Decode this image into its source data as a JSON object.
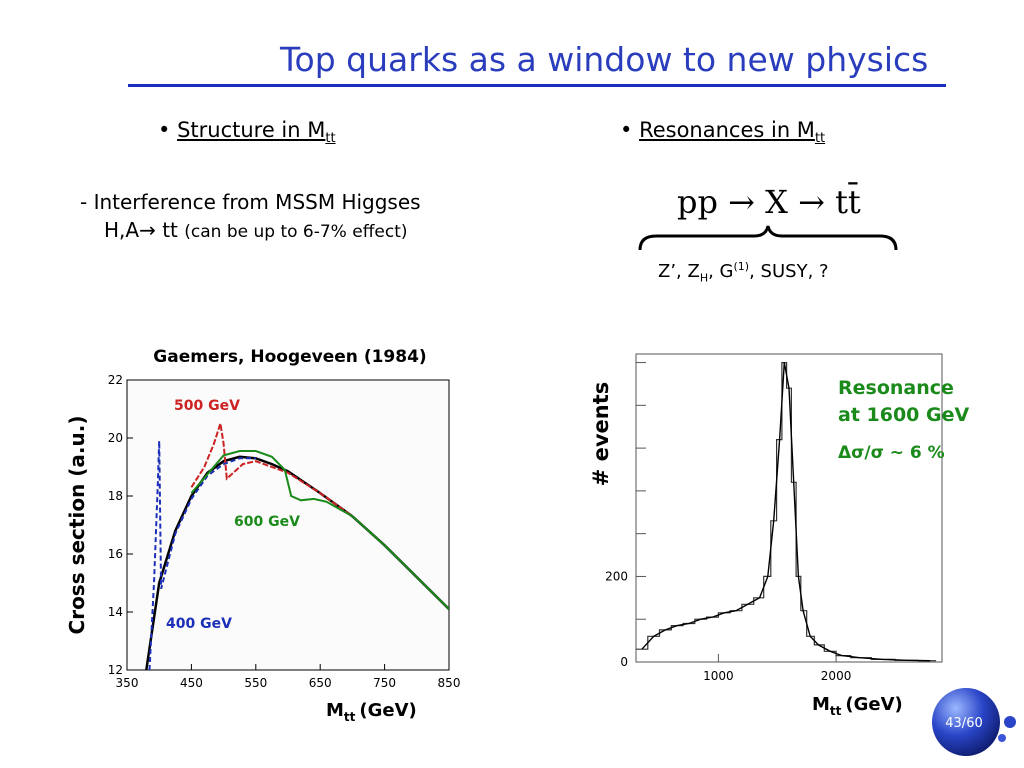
{
  "slide": {
    "title": "Top quarks as a window to new physics",
    "page_number": "43/60",
    "accent_color": "#2a3dbd"
  },
  "left": {
    "bullet_label": "Structure in M",
    "bullet_sub": "tt",
    "interference_line1": "- Interference from MSSM Higgses",
    "interference_line2": "H,A",
    "interference_arrow": "→",
    "interference_tt": "tt",
    "interference_note": "(can be up to 6-7% effect)",
    "plot_title": "Gaemers, Hoogeveen (1984)",
    "ylabel": "Cross section (a.u.)",
    "xlabel_main": "M",
    "xlabel_sub": "tt",
    "xlabel_unit": "(GeV)",
    "labels": {
      "m500": "500 GeV",
      "m600": "600 GeV",
      "m400": "400 GeV"
    }
  },
  "right": {
    "bullet_label": "Resonances in M",
    "bullet_sub": "tt",
    "equation": "pp → X → tt̄",
    "candidates_text": "Z’, Z",
    "candidates_sub": "H",
    "candidates_g": ", G",
    "candidates_sup": "(1)",
    "candidates_rest": ", SUSY, ?",
    "ylabel": "# events",
    "xlabel_main": "M",
    "xlabel_sub": "tt",
    "xlabel_unit": "(GeV)",
    "annotation_line1": "Resonance",
    "annotation_line2": "at 1600 GeV",
    "annotation_line3": "Δσ/σ ~ 6 %"
  },
  "chart_data": [
    {
      "type": "line",
      "title": "Gaemers, Hoogeveen (1984)",
      "xlabel": "Mtt (GeV)",
      "ylabel": "Cross section (a.u.)",
      "xlim": [
        350,
        850
      ],
      "ylim": [
        12,
        22
      ],
      "xticks": [
        350,
        450,
        550,
        650,
        750,
        850
      ],
      "yticks": [
        12,
        14,
        16,
        18,
        20,
        22
      ],
      "series": [
        {
          "name": "",
          "color": "#000000",
          "x": [
            380,
            400,
            425,
            450,
            475,
            500,
            525,
            550,
            575,
            600,
            650,
            700,
            750,
            800,
            850
          ],
          "y": [
            12.0,
            15.0,
            16.8,
            18.0,
            18.8,
            19.2,
            19.35,
            19.3,
            19.1,
            18.85,
            18.1,
            17.3,
            16.3,
            15.2,
            14.1
          ]
        },
        {
          "name": "400 GeV",
          "color": "#1c2fb8",
          "x": [
            385,
            392,
            398,
            400,
            403,
            410,
            425,
            450,
            475,
            500,
            525,
            550
          ],
          "y": [
            12.0,
            15.0,
            18.5,
            19.9,
            14.8,
            15.4,
            16.7,
            17.9,
            18.7,
            19.1,
            19.3,
            19.3
          ]
        },
        {
          "name": "500 GeV",
          "color": "#cc2222",
          "x": [
            450,
            470,
            485,
            495,
            500,
            505,
            515,
            530,
            550,
            600,
            650,
            700
          ],
          "y": [
            18.3,
            19.0,
            19.8,
            20.5,
            19.8,
            18.6,
            18.8,
            19.1,
            19.2,
            18.8,
            18.1,
            17.3
          ]
        },
        {
          "name": "600 GeV",
          "color": "#1a8a1a",
          "x": [
            450,
            500,
            525,
            550,
            575,
            595,
            605,
            620,
            640,
            660,
            700,
            750,
            800,
            850
          ],
          "y": [
            18.1,
            19.4,
            19.55,
            19.55,
            19.35,
            18.9,
            18.0,
            17.85,
            17.9,
            17.8,
            17.3,
            16.3,
            15.2,
            14.1
          ]
        }
      ]
    },
    {
      "type": "line",
      "xlabel": "Mtt (GeV)",
      "ylabel": "# events",
      "xlim": [
        300,
        2900
      ],
      "ylim": [
        0,
        720
      ],
      "xticks": [
        1000,
        2000
      ],
      "yticks": [
        0,
        200
      ],
      "series": [
        {
          "name": "",
          "color": "#333333",
          "x": [
            350,
            450,
            550,
            650,
            750,
            850,
            950,
            1050,
            1150,
            1250,
            1350,
            1420,
            1470,
            1520,
            1560,
            1600,
            1640,
            1680,
            1720,
            1780,
            1850,
            1950,
            2050,
            2200,
            2400,
            2600,
            2800
          ],
          "y": [
            30,
            60,
            75,
            85,
            90,
            100,
            105,
            115,
            120,
            135,
            150,
            200,
            330,
            520,
            700,
            640,
            420,
            200,
            120,
            60,
            40,
            25,
            15,
            10,
            6,
            4,
            3
          ]
        }
      ]
    }
  ]
}
